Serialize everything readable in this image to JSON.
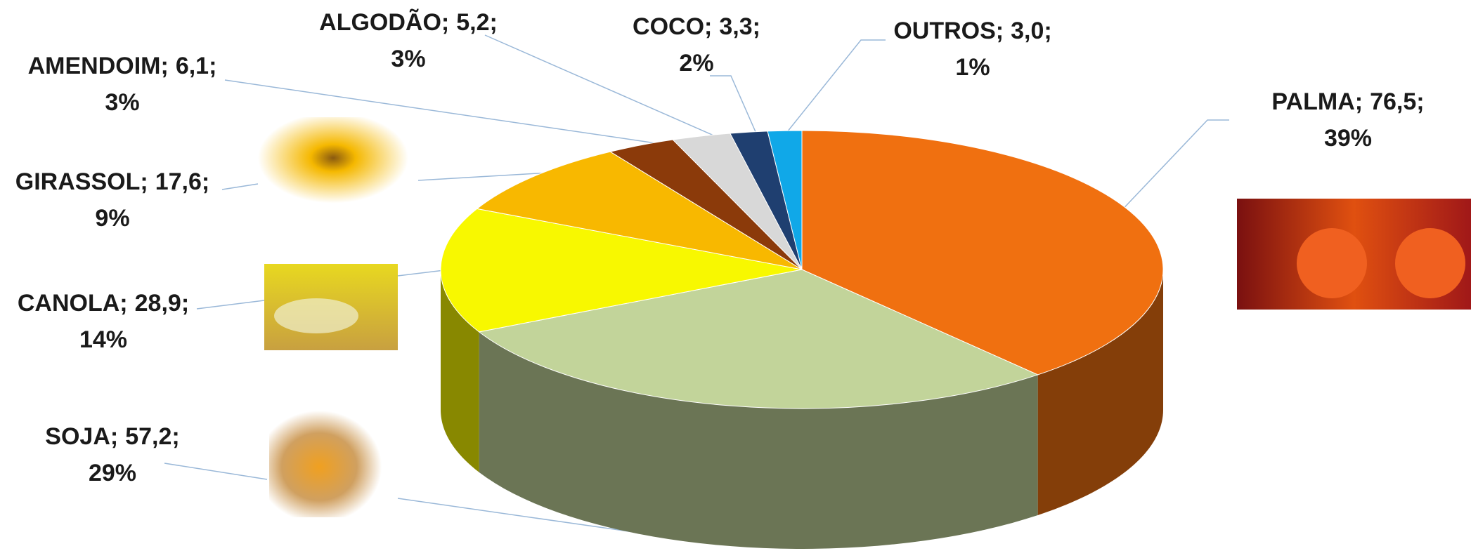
{
  "chart_data": {
    "type": "pie3d",
    "categories": [
      "PALMA",
      "SOJA",
      "CANOLA",
      "GIRASSOL",
      "AMENDOIM",
      "ALGODÃO",
      "COCO",
      "OUTROS"
    ],
    "values": [
      76.5,
      57.2,
      28.9,
      17.6,
      6.1,
      5.2,
      3.3,
      3.0
    ],
    "value_labels": [
      "76,5",
      "57,2",
      "28,9",
      "17,6",
      "6,1",
      "5,2",
      "3,3",
      "3,0"
    ],
    "percents": [
      39,
      29,
      14,
      9,
      3,
      3,
      2,
      1
    ],
    "percent_labels": [
      "39%",
      "29%",
      "14%",
      "9%",
      "3%",
      "3%",
      "2%",
      "1%"
    ],
    "label_separator": ";",
    "colors": [
      "#f07010",
      "#c2d49a",
      "#f8f800",
      "#f8b800",
      "#8b3a0a",
      "#d8d8d8",
      "#1f3f70",
      "#10a8e8"
    ]
  }
}
